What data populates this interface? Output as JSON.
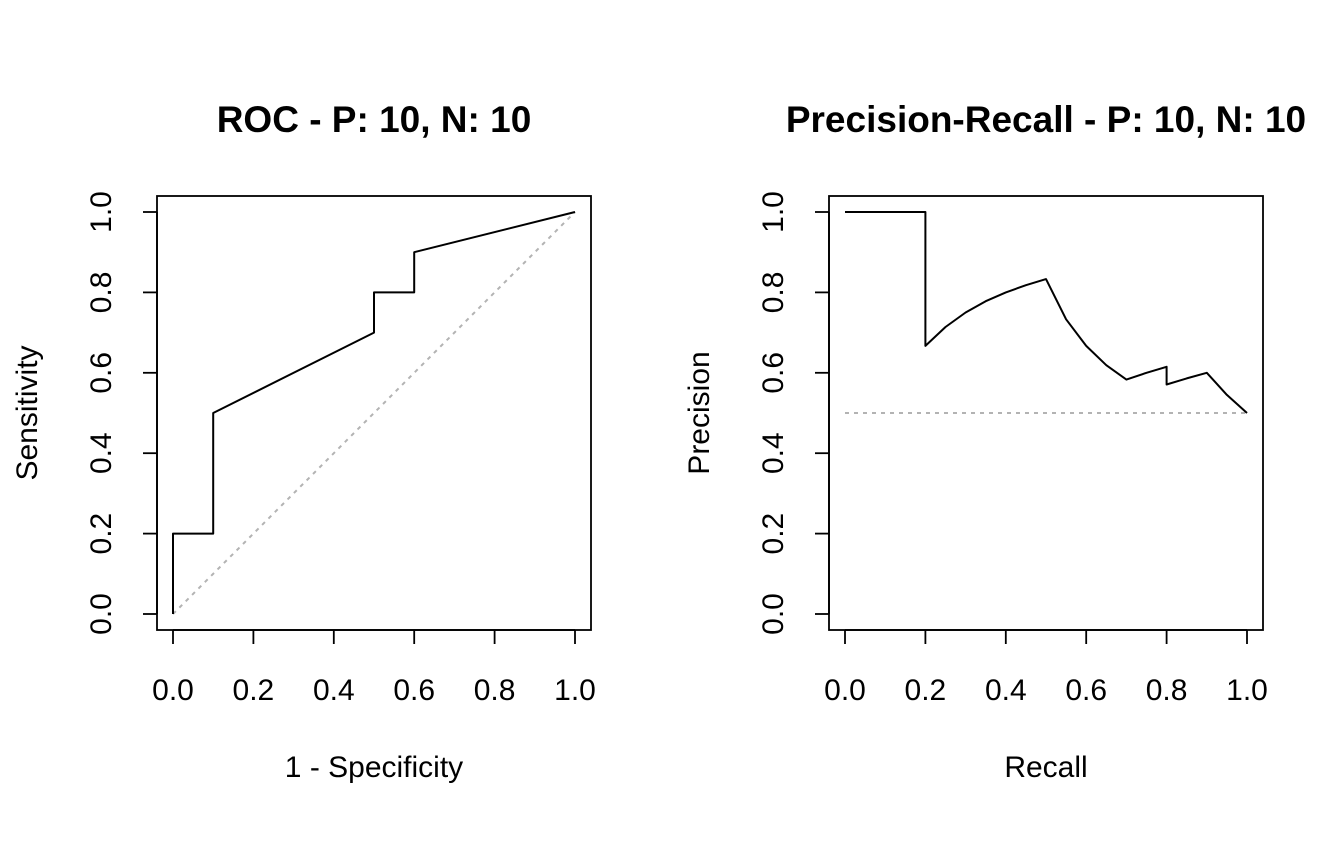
{
  "chart_data": [
    {
      "type": "line",
      "title": "ROC - P: 10, N: 10",
      "xlabel": "1 - Specificity",
      "ylabel": "Sensitivity",
      "xlim": [
        0,
        1
      ],
      "ylim": [
        0,
        1
      ],
      "xticks": [
        "0.0",
        "0.2",
        "0.4",
        "0.6",
        "0.8",
        "1.0"
      ],
      "yticks": [
        "0.0",
        "0.2",
        "0.4",
        "0.6",
        "0.8",
        "1.0"
      ],
      "grid": false,
      "series": [
        {
          "x": [
            0,
            0,
            0.1,
            0.1,
            0.5,
            0.5,
            0.6,
            0.6,
            1.0
          ],
          "y": [
            0,
            0.2,
            0.2,
            0.5,
            0.7,
            0.8,
            0.8,
            0.9,
            1.0
          ],
          "color": "#000000",
          "style": "solid"
        }
      ],
      "reference_line": {
        "x": [
          0,
          1
        ],
        "y": [
          0,
          1
        ],
        "color": "#b3b3b3",
        "style": "dotted"
      }
    },
    {
      "type": "line",
      "title": "Precision-Recall - P: 10, N: 10",
      "xlabel": "Recall",
      "ylabel": "Precision",
      "xlim": [
        0,
        1
      ],
      "ylim": [
        0,
        1
      ],
      "xticks": [
        "0.0",
        "0.2",
        "0.4",
        "0.6",
        "0.8",
        "1.0"
      ],
      "yticks": [
        "0.0",
        "0.2",
        "0.4",
        "0.6",
        "0.8",
        "1.0"
      ],
      "grid": false,
      "series": [
        {
          "x": [
            0,
            0.1,
            0.2,
            0.2,
            0.25,
            0.3,
            0.35,
            0.4,
            0.45,
            0.5,
            0.55,
            0.6,
            0.65,
            0.7,
            0.75,
            0.8,
            0.8,
            0.85,
            0.9,
            0.95,
            1.0
          ],
          "y": [
            1.0,
            1.0,
            1.0,
            0.667,
            0.714,
            0.75,
            0.778,
            0.8,
            0.818,
            0.833,
            0.733,
            0.667,
            0.619,
            0.583,
            0.6,
            0.615,
            0.571,
            0.586,
            0.6,
            0.545,
            0.5
          ],
          "color": "#000000",
          "style": "solid"
        }
      ],
      "reference_line": {
        "x": [
          0,
          1
        ],
        "y": [
          0.5,
          0.5
        ],
        "color": "#b3b3b3",
        "style": "dotted"
      }
    }
  ]
}
